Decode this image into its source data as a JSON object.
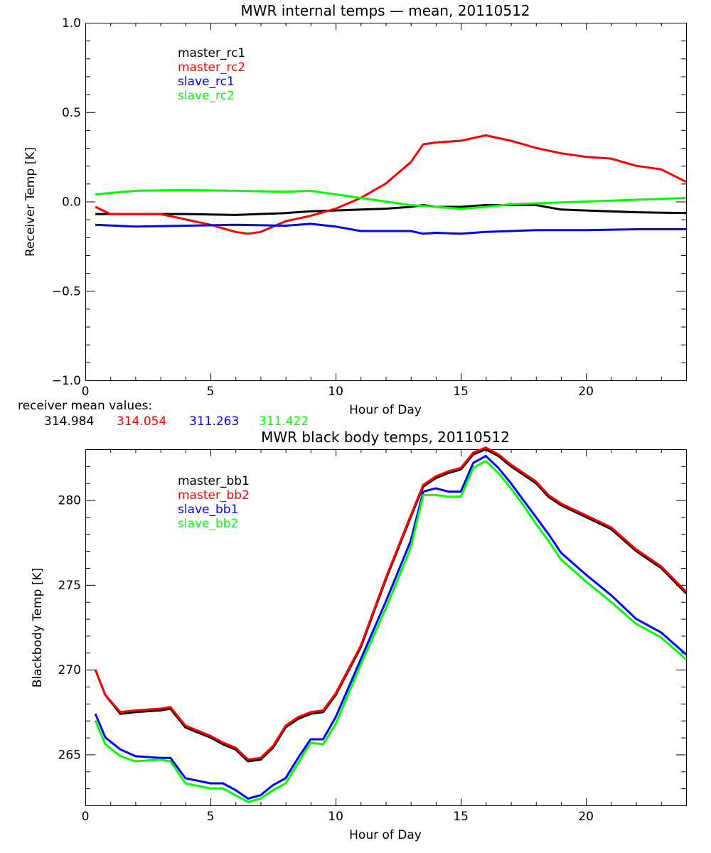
{
  "chart_data": [
    {
      "type": "line",
      "title": "MWR internal temps — mean, 20110512",
      "xlabel": "Hour of Day",
      "ylabel": "Receiver Temp [K]",
      "xlim": [
        0,
        24
      ],
      "ylim": [
        -1.0,
        1.0
      ],
      "xticks": [
        0,
        5,
        10,
        15,
        20
      ],
      "yticks": [
        -1.0,
        -0.5,
        0.0,
        0.5,
        1.0
      ],
      "ytick_labels": [
        "−1.0",
        "−0.5",
        "0.0",
        "0.5",
        "1.0"
      ],
      "legend_position": "top-left",
      "series": [
        {
          "name": "master_rc1",
          "color": "#000000",
          "x": [
            0.4,
            2,
            4,
            6,
            8,
            9,
            10,
            11,
            12,
            13,
            13.5,
            14,
            15,
            16,
            17,
            18,
            19,
            20,
            22,
            24
          ],
          "y": [
            -0.07,
            -0.07,
            -0.07,
            -0.075,
            -0.065,
            -0.055,
            -0.05,
            -0.045,
            -0.04,
            -0.03,
            -0.02,
            -0.03,
            -0.03,
            -0.02,
            -0.02,
            -0.02,
            -0.045,
            -0.05,
            -0.06,
            -0.065
          ]
        },
        {
          "name": "master_rc2",
          "color": "#ff0000",
          "x": [
            0.4,
            1,
            2,
            3,
            4,
            5,
            6,
            6.5,
            7,
            8,
            9,
            10,
            11,
            12,
            13,
            13.5,
            14,
            15,
            16,
            17,
            18,
            19,
            20,
            21,
            22,
            23,
            24
          ],
          "y": [
            -0.03,
            -0.07,
            -0.07,
            -0.07,
            -0.1,
            -0.13,
            -0.17,
            -0.18,
            -0.17,
            -0.11,
            -0.08,
            -0.04,
            0.02,
            0.1,
            0.22,
            0.32,
            0.33,
            0.34,
            0.37,
            0.34,
            0.3,
            0.27,
            0.25,
            0.24,
            0.2,
            0.18,
            0.11
          ]
        },
        {
          "name": "slave_rc1",
          "color": "#0000ff",
          "x": [
            0.4,
            2,
            4,
            6,
            8,
            9,
            10,
            11,
            12,
            13,
            13.5,
            14,
            15,
            16,
            17,
            18,
            20,
            22,
            24
          ],
          "y": [
            -0.13,
            -0.14,
            -0.135,
            -0.13,
            -0.135,
            -0.125,
            -0.14,
            -0.165,
            -0.165,
            -0.165,
            -0.18,
            -0.175,
            -0.18,
            -0.17,
            -0.165,
            -0.16,
            -0.16,
            -0.155,
            -0.155
          ]
        },
        {
          "name": "slave_rc2",
          "color": "#00ff00",
          "x": [
            0.4,
            2,
            4,
            6,
            8,
            9,
            10,
            11,
            12,
            13,
            14,
            15,
            16,
            17,
            18,
            20,
            22,
            24
          ],
          "y": [
            0.04,
            0.06,
            0.065,
            0.06,
            0.055,
            0.06,
            0.04,
            0.02,
            0.0,
            -0.02,
            -0.03,
            -0.04,
            -0.03,
            -0.015,
            -0.01,
            0.0,
            0.01,
            0.02
          ]
        }
      ],
      "annotation_label": "receiver mean values:",
      "mean_values": [
        {
          "value": "314.984",
          "color": "#000000"
        },
        {
          "value": "314.054",
          "color": "#ff0000"
        },
        {
          "value": "311.263",
          "color": "#0000ff"
        },
        {
          "value": "311.422",
          "color": "#00ff00"
        }
      ]
    },
    {
      "type": "line",
      "title": "MWR black body temps, 20110512",
      "xlabel": "Hour of Day",
      "ylabel": "Blackbody Temp [K]",
      "xlim": [
        0,
        24
      ],
      "ylim": [
        262,
        283
      ],
      "xticks": [
        0,
        5,
        10,
        15,
        20
      ],
      "yticks": [
        265,
        270,
        275,
        280
      ],
      "ytick_labels": [
        "265",
        "270",
        "275",
        "280"
      ],
      "legend_position": "top-left",
      "series": [
        {
          "name": "master_bb1",
          "color": "#000000",
          "x": [
            0.4,
            0.8,
            1.4,
            2,
            3,
            3.4,
            4,
            5,
            5.5,
            6,
            6.5,
            7,
            7.5,
            8,
            8.5,
            9,
            9.5,
            10,
            11,
            12,
            13,
            13.5,
            14,
            14.5,
            15,
            15.5,
            16,
            16.5,
            17,
            17.5,
            18,
            18.5,
            19,
            20,
            21,
            22,
            23,
            24
          ],
          "y": [
            270.0,
            268.5,
            267.4,
            267.5,
            267.6,
            267.7,
            266.6,
            266.0,
            265.6,
            265.3,
            264.6,
            264.7,
            265.4,
            266.6,
            267.1,
            267.4,
            267.5,
            268.5,
            271.3,
            275.3,
            279.0,
            280.8,
            281.3,
            281.6,
            281.8,
            282.7,
            283.0,
            282.6,
            282.0,
            281.5,
            281.0,
            280.2,
            279.7,
            279.0,
            278.3,
            277.0,
            276.0,
            274.5
          ]
        },
        {
          "name": "master_bb2",
          "color": "#ff0000",
          "x": [
            0.4,
            0.8,
            1.4,
            2,
            3,
            3.4,
            4,
            5,
            5.5,
            6,
            6.5,
            7,
            7.5,
            8,
            8.5,
            9,
            9.5,
            10,
            11,
            12,
            13,
            13.5,
            14,
            14.5,
            15,
            15.5,
            16,
            16.5,
            17,
            17.5,
            18,
            18.5,
            19,
            20,
            21,
            22,
            23,
            24
          ],
          "y": [
            270.0,
            268.5,
            267.5,
            267.6,
            267.7,
            267.8,
            266.7,
            266.1,
            265.7,
            265.4,
            264.7,
            264.8,
            265.5,
            266.7,
            267.2,
            267.5,
            267.6,
            268.6,
            271.4,
            275.4,
            279.1,
            280.9,
            281.4,
            281.7,
            281.9,
            282.8,
            283.1,
            282.7,
            282.1,
            281.6,
            281.1,
            280.3,
            279.8,
            279.1,
            278.4,
            277.1,
            276.1,
            274.6
          ]
        },
        {
          "name": "slave_bb1",
          "color": "#0000ff",
          "x": [
            0.4,
            0.8,
            1.4,
            2,
            3,
            3.4,
            4,
            5,
            5.5,
            6,
            6.5,
            7,
            7.5,
            8,
            8.5,
            9,
            9.5,
            10,
            11,
            12,
            13,
            13.5,
            14,
            14.5,
            15,
            15.5,
            16,
            16.5,
            17,
            17.5,
            18,
            18.5,
            19,
            20,
            21,
            22,
            23,
            24
          ],
          "y": [
            267.4,
            266.0,
            265.3,
            264.9,
            264.8,
            264.8,
            263.6,
            263.3,
            263.3,
            262.9,
            262.4,
            262.6,
            263.2,
            263.6,
            264.8,
            265.9,
            265.9,
            267.2,
            270.6,
            274.0,
            277.6,
            280.5,
            280.7,
            280.5,
            280.5,
            282.2,
            282.6,
            281.9,
            281.0,
            280.0,
            279.0,
            278.0,
            276.9,
            275.6,
            274.4,
            273.0,
            272.2,
            270.9
          ]
        },
        {
          "name": "slave_bb2",
          "color": "#00ff00",
          "x": [
            0.4,
            0.8,
            1.4,
            2,
            3,
            3.4,
            4,
            5,
            5.5,
            6,
            6.5,
            7,
            7.5,
            8,
            8.5,
            9,
            9.5,
            10,
            11,
            12,
            13,
            13.5,
            14,
            14.5,
            15,
            15.5,
            16,
            16.5,
            17,
            17.5,
            18,
            18.5,
            19,
            20,
            21,
            22,
            23,
            24
          ],
          "y": [
            267.0,
            265.6,
            264.9,
            264.6,
            264.7,
            264.6,
            263.3,
            263.0,
            263.0,
            262.6,
            262.2,
            262.4,
            262.9,
            263.3,
            264.5,
            265.7,
            265.6,
            266.8,
            270.3,
            273.6,
            277.2,
            280.3,
            280.3,
            280.2,
            280.2,
            281.9,
            282.3,
            281.6,
            280.7,
            279.7,
            278.6,
            277.6,
            276.5,
            275.2,
            274.0,
            272.7,
            271.9,
            270.6
          ]
        }
      ]
    }
  ]
}
